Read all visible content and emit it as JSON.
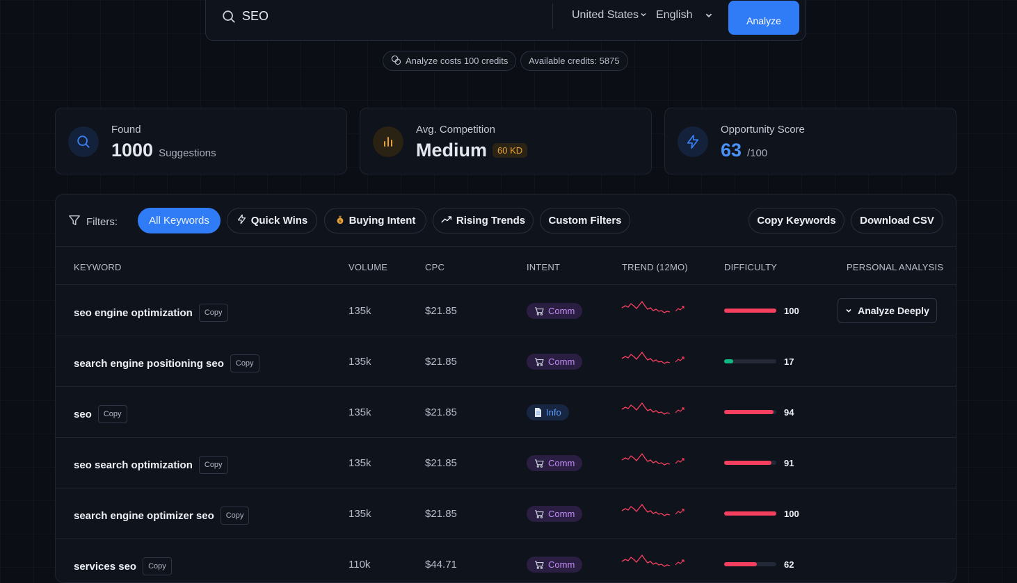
{
  "search": {
    "value": "SEO",
    "country": "United States",
    "language": "English",
    "analyze_label": "Analyze"
  },
  "credits": {
    "cost_text": "Analyze costs 100 credits",
    "available_text": "Available credits: 5875"
  },
  "stats": {
    "found": {
      "label": "Found",
      "value": "1000",
      "unit": "Suggestions"
    },
    "competition": {
      "label": "Avg. Competition",
      "value": "Medium",
      "badge": "60 KD"
    },
    "opportunity": {
      "label": "Opportunity Score",
      "value": "63",
      "unit": "/100"
    }
  },
  "filters": {
    "label": "Filters:",
    "items": [
      "All Keywords",
      "Quick Wins",
      "Buying Intent",
      "Rising Trends",
      "Custom Filters"
    ],
    "copy_label": "Copy Keywords",
    "download_label": "Download CSV"
  },
  "table": {
    "headers": {
      "keyword": "KEYWORD",
      "volume": "VOLUME",
      "cpc": "CPC",
      "intent": "INTENT",
      "trend": "TREND (12MO)",
      "difficulty": "DIFFICULTY",
      "personal": "PERSONAL ANALYSIS"
    },
    "copy_label": "Copy",
    "analyze_deeply_label": "Analyze Deeply",
    "rows": [
      {
        "keyword": "seo engine optimization",
        "volume": "135k",
        "cpc": "$21.85",
        "intent": "Comm",
        "difficulty": "100",
        "diff_value": 100
      },
      {
        "keyword": "search engine positioning seo",
        "volume": "135k",
        "cpc": "$21.85",
        "intent": "Comm",
        "difficulty": "17",
        "diff_value": 17
      },
      {
        "keyword": "seo",
        "volume": "135k",
        "cpc": "$21.85",
        "intent": "Info",
        "difficulty": "94",
        "diff_value": 94
      },
      {
        "keyword": "seo search optimization",
        "volume": "135k",
        "cpc": "$21.85",
        "intent": "Comm",
        "difficulty": "91",
        "diff_value": 91
      },
      {
        "keyword": "search engine optimizer seo",
        "volume": "135k",
        "cpc": "$21.85",
        "intent": "Comm",
        "difficulty": "100",
        "diff_value": 100
      },
      {
        "keyword": "services seo",
        "volume": "110k",
        "cpc": "$44.71",
        "intent": "Comm",
        "difficulty": "62",
        "diff_value": 62
      }
    ]
  },
  "colors": {
    "accent": "#2f7cf6",
    "difficulty_high": "#f43f5e",
    "difficulty_low": "#10b981",
    "trend_line": "#f43f5e",
    "comm_badge": "#c58cf7",
    "info_badge": "#5d9cf6",
    "competition_badge": "#e9a23b"
  }
}
